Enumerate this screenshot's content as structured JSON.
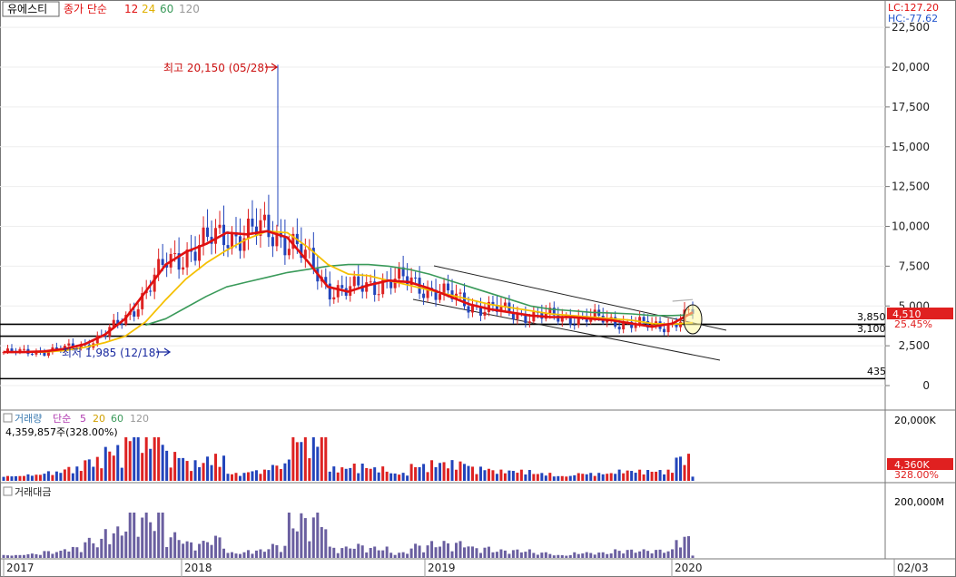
{
  "header": {
    "stock_name": "유에스티",
    "price_ma_label": "종가 단순",
    "price_ma_periods": [
      "12",
      "24",
      "60",
      "120"
    ],
    "volume_label": "거래량",
    "volume_ma_label": "단순",
    "volume_ma_periods": [
      "5",
      "20",
      "60",
      "120"
    ],
    "volume_value": "4,359,857주(328.00%)",
    "amount_label": "거래대금"
  },
  "top_right": {
    "lc": "LC:127.20",
    "hc": "HC:-77.62"
  },
  "annotations": {
    "high": "최고 20,150 (05/28)",
    "low": "최저 1,985 (12/18)",
    "level_3850": "3,850",
    "level_3100": "3,100",
    "level_435": "435",
    "current_price": "4,510",
    "current_pct": "25.45%",
    "current_volume": "4,360K",
    "current_volume_pct": "328.00%"
  },
  "colors": {
    "ma12": "#e01010",
    "ma24": "#f5c000",
    "ma60": "#3a9a5a",
    "ma120": "#b0b0b0",
    "up": "#dd2222",
    "down": "#2244bb",
    "amount": "#6a5fa0",
    "price_tag": "#e02020"
  },
  "chart_data": [
    {
      "type": "candlestick",
      "title": "유에스티",
      "y_ticks": [
        "0",
        "2,500",
        "5,000",
        "7,500",
        "10,000",
        "12,500",
        "15,000",
        "17,500",
        "20,000",
        "22,500"
      ],
      "ylim": [
        -400,
        23000
      ],
      "x_ticks": [
        "2017",
        "2018",
        "2019",
        "2020",
        "02/03"
      ],
      "horizontal_levels": [
        3850,
        3100,
        435
      ],
      "high": {
        "value": 20150,
        "date": "05/28"
      },
      "low": {
        "value": 1985,
        "date": "12/18"
      },
      "series": [
        {
          "name": "12",
          "values": [
            2100,
            2100,
            2150,
            2300,
            2600,
            3200,
            4200,
            5900,
            7600,
            8400,
            8900,
            9600,
            9500,
            9700,
            9300,
            7800,
            6200,
            5900,
            6300,
            6600,
            6500,
            6100,
            5600,
            5100,
            4800,
            4600,
            4400,
            4300,
            4300,
            4200,
            4100,
            3900,
            3700,
            3900,
            4600
          ]
        },
        {
          "name": "24",
          "values": [
            2100,
            2100,
            2100,
            2200,
            2400,
            2700,
            3100,
            4000,
            5400,
            6700,
            7700,
            8500,
            9200,
            9700,
            9600,
            8700,
            7600,
            7000,
            6900,
            6600,
            6300,
            6000,
            5700,
            5400,
            5100,
            4900,
            4700,
            4500,
            4400,
            4300,
            4200,
            4100,
            3900,
            3850,
            3950
          ]
        },
        {
          "name": "60",
          "values": [
            null,
            null,
            null,
            null,
            null,
            null,
            null,
            3800,
            4200,
            4900,
            5600,
            6200,
            6500,
            6800,
            7100,
            7300,
            7500,
            7600,
            7600,
            7500,
            7300,
            7000,
            6600,
            6200,
            5800,
            5400,
            5000,
            4800,
            4700,
            4600,
            4550,
            4500,
            4400,
            4400,
            4450
          ]
        },
        {
          "name": "120",
          "values": [
            null,
            null,
            null,
            null,
            null,
            null,
            null,
            null,
            null,
            null,
            null,
            null,
            null,
            null,
            null,
            null,
            null,
            null,
            null,
            null,
            null,
            null,
            null,
            null,
            null,
            null,
            null,
            null,
            null,
            null,
            null,
            null,
            null,
            5300,
            5400
          ]
        }
      ]
    },
    {
      "type": "bar",
      "title": "거래량",
      "y_ticks": [
        "20,000K"
      ],
      "current_value": "4,360K"
    },
    {
      "type": "bar",
      "title": "거래대금",
      "y_ticks": [
        "200,000M"
      ]
    }
  ]
}
